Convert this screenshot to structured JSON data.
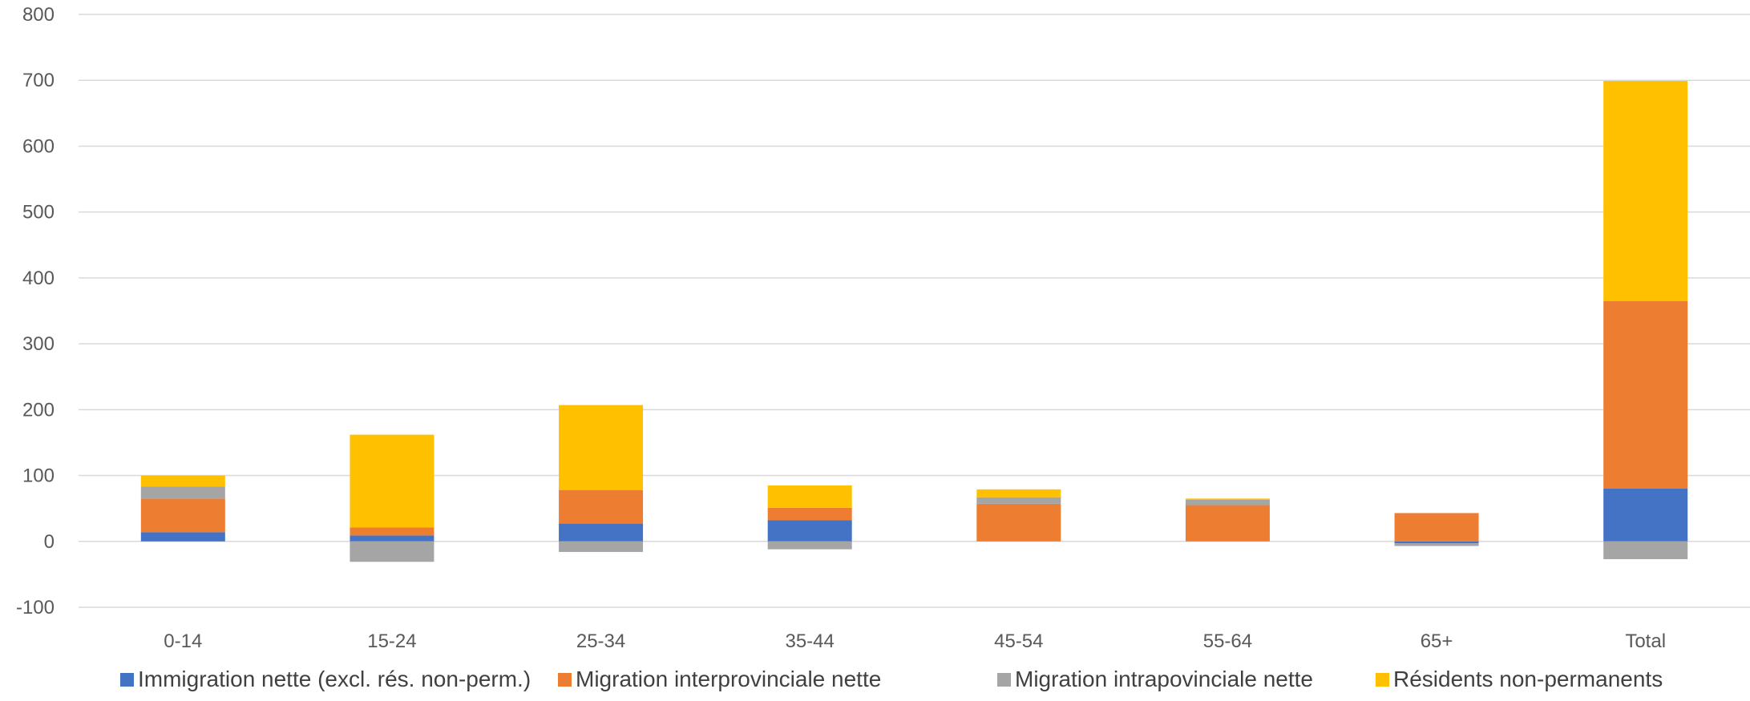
{
  "chart_data": {
    "type": "bar",
    "stacked": true,
    "categories": [
      "0-14",
      "15-24",
      "25-34",
      "35-44",
      "45-54",
      "55-64",
      "65+",
      "Total"
    ],
    "ylim": [
      -100,
      800
    ],
    "yticks": [
      -100,
      0,
      100,
      200,
      300,
      400,
      500,
      600,
      700,
      800
    ],
    "ytick_labels": [
      "-100",
      "0",
      "100",
      "200",
      "300",
      "400",
      "500",
      "600",
      "700",
      "800"
    ],
    "grid": true,
    "legend_position": "bottom",
    "title": "",
    "xlabel": "",
    "ylabel": "",
    "series": [
      {
        "name": "Immigration nette (excl. rés. non-perm.)",
        "color": "#4472C4",
        "values": [
          14,
          9,
          27,
          32,
          0,
          0,
          -3,
          80
        ]
      },
      {
        "name": "Migration interprovinciale nette",
        "color": "#ED7D31",
        "values": [
          51,
          12,
          51,
          19,
          57,
          55,
          43,
          285
        ]
      },
      {
        "name": "Migration intrapovinciale nette",
        "color": "#A5A5A5",
        "values": [
          18,
          -31,
          -16,
          -12,
          10,
          8,
          -4,
          -27
        ]
      },
      {
        "name": "Résidents non-permanents",
        "color": "#FFC000",
        "values": [
          17,
          141,
          129,
          34,
          12,
          2,
          0,
          334
        ]
      }
    ]
  }
}
